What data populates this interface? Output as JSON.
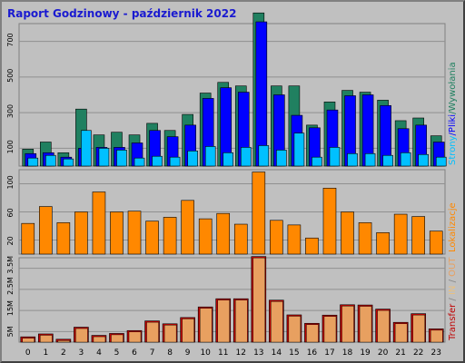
{
  "title": "Raport Godzinowy -  październik 2022",
  "colors": {
    "title": "#1a1ad0",
    "background": "#c0c0c0",
    "panel": "#c0c0c0",
    "grid": "#909090",
    "strony": "#00c0ff",
    "pliki": "#0000ff",
    "wywolania": "#208060",
    "lokalizacje": "#ff8800",
    "transfer": "#c00000",
    "in": "#e8c080",
    "out": "#e8a060"
  },
  "legends": {
    "top": {
      "strony": "Strony",
      "sep1": "/",
      "pliki": "Pliki",
      "sep2": "/",
      "wywolania": "Wywołania"
    },
    "middle": {
      "lokalizacje": "Lokalizacje"
    },
    "bottom": {
      "transfer": "Transfer",
      "sep1": " / ",
      "in": "IN",
      "sep2": " / ",
      "out": "OUT"
    }
  },
  "chart_data": [
    {
      "type": "bar",
      "title": "Raport Godzinowy -  październik 2022",
      "categories": [
        "0",
        "1",
        "2",
        "3",
        "4",
        "5",
        "6",
        "7",
        "8",
        "9",
        "10",
        "11",
        "12",
        "13",
        "14",
        "15",
        "16",
        "17",
        "18",
        "19",
        "20",
        "21",
        "22",
        "23"
      ],
      "ylim": [
        0,
        800
      ],
      "yticks": [
        "100",
        "300",
        "500",
        "700"
      ],
      "grid": true,
      "series": [
        {
          "name": "Wywołania",
          "values": [
            95,
            135,
            75,
            320,
            175,
            190,
            175,
            240,
            200,
            290,
            410,
            470,
            450,
            860,
            450,
            450,
            230,
            360,
            425,
            415,
            370,
            255,
            270,
            170
          ]
        },
        {
          "name": "Pliki",
          "values": [
            70,
            75,
            50,
            100,
            105,
            105,
            130,
            200,
            165,
            230,
            380,
            440,
            415,
            810,
            400,
            285,
            215,
            315,
            395,
            400,
            340,
            210,
            230,
            135
          ]
        },
        {
          "name": "Strony",
          "values": [
            45,
            60,
            40,
            200,
            100,
            90,
            45,
            55,
            50,
            85,
            110,
            75,
            105,
            115,
            90,
            185,
            50,
            105,
            70,
            70,
            60,
            75,
            65,
            50
          ]
        }
      ]
    },
    {
      "type": "bar",
      "categories": [
        "0",
        "1",
        "2",
        "3",
        "4",
        "5",
        "6",
        "7",
        "8",
        "9",
        "10",
        "11",
        "12",
        "13",
        "14",
        "15",
        "16",
        "17",
        "18",
        "19",
        "20",
        "21",
        "22",
        "23"
      ],
      "ylim": [
        0,
        110
      ],
      "yticks": [
        "20",
        "60",
        "100"
      ],
      "grid": true,
      "series": [
        {
          "name": "Lokalizacje",
          "values": [
            40,
            62,
            41,
            55,
            81,
            55,
            56,
            43,
            48,
            70,
            46,
            53,
            39,
            107,
            44,
            38,
            21,
            86,
            55,
            41,
            28,
            52,
            49,
            30
          ]
        }
      ]
    },
    {
      "type": "bar",
      "categories": [
        "0",
        "1",
        "2",
        "3",
        "4",
        "5",
        "6",
        "7",
        "8",
        "9",
        "10",
        "11",
        "12",
        "13",
        "14",
        "15",
        "16",
        "17",
        "18",
        "19",
        "20",
        "21",
        "22",
        "23"
      ],
      "ylim": [
        0,
        3.5
      ],
      "yticks": [
        "5M",
        "15M",
        "2.5M",
        "3.5M"
      ],
      "grid": true,
      "series": [
        {
          "name": "Transfer",
          "values": [
            0.22,
            0.34,
            0.12,
            0.62,
            0.28,
            0.36,
            0.48,
            0.88,
            0.76,
            1.02,
            1.46,
            1.8,
            1.8,
            3.55,
            1.74,
            1.13,
            0.78,
            1.12,
            1.55,
            1.54,
            1.37,
            0.82,
            1.18,
            0.55
          ]
        }
      ]
    }
  ]
}
